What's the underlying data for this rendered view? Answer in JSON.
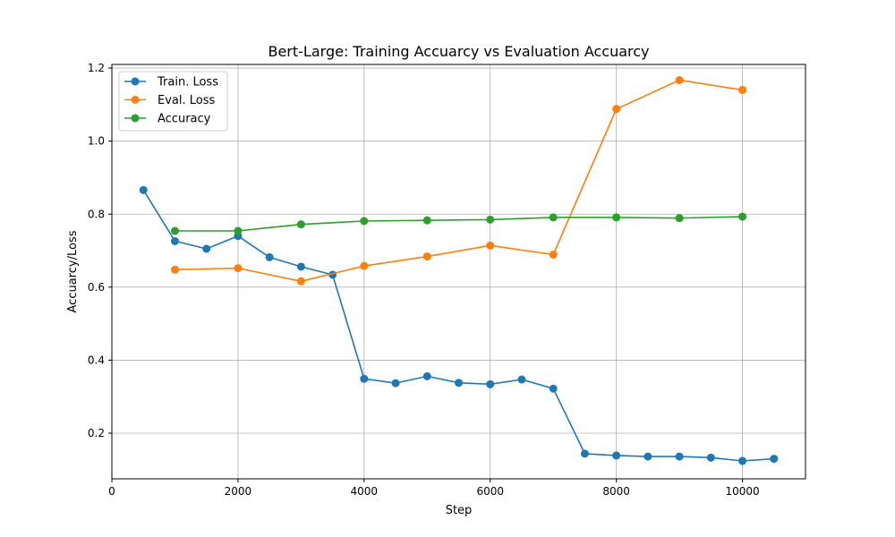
{
  "chart_data": {
    "type": "line",
    "title": "Bert-Large: Training Accuarcy vs Evaluation Accuarcy",
    "xlabel": "Step",
    "ylabel": "Accuarcy/Loss",
    "xlim": [
      0,
      11000
    ],
    "ylim": [
      0.075,
      1.21
    ],
    "x_ticks": [
      0,
      2000,
      4000,
      6000,
      8000,
      10000
    ],
    "y_ticks": [
      0.2,
      0.4,
      0.6,
      0.8,
      1.0,
      1.2
    ],
    "x_tick_labels": [
      "0",
      "2000",
      "4000",
      "6000",
      "8000",
      "10000"
    ],
    "y_tick_labels": [
      "0.2",
      "0.4",
      "0.6",
      "0.8",
      "1.0",
      "1.2"
    ],
    "grid": true,
    "legend": "upper-left",
    "series": [
      {
        "name": "Train. Loss",
        "color": "#1f77b4",
        "x": [
          500,
          1000,
          1500,
          2000,
          2500,
          3000,
          3500,
          4000,
          4500,
          5000,
          5500,
          6000,
          6500,
          7000,
          7500,
          8000,
          8500,
          9000,
          9500,
          10000,
          10500
        ],
        "y": [
          0.866,
          0.726,
          0.705,
          0.74,
          0.682,
          0.656,
          0.634,
          0.349,
          0.337,
          0.356,
          0.338,
          0.334,
          0.347,
          0.322,
          0.144,
          0.139,
          0.136,
          0.136,
          0.133,
          0.124,
          0.13
        ]
      },
      {
        "name": "Eval. Loss",
        "color": "#ff7f0e",
        "x": [
          1000,
          2000,
          3000,
          4000,
          5000,
          6000,
          7000,
          8000,
          9000,
          10000
        ],
        "y": [
          0.648,
          0.652,
          0.616,
          0.658,
          0.684,
          0.714,
          0.689,
          1.088,
          1.167,
          1.14
        ]
      },
      {
        "name": "Accuracy",
        "color": "#2ca02c",
        "x": [
          1000,
          2000,
          3000,
          4000,
          5000,
          6000,
          7000,
          8000,
          9000,
          10000
        ],
        "y": [
          0.754,
          0.754,
          0.772,
          0.781,
          0.783,
          0.785,
          0.791,
          0.791,
          0.789,
          0.793
        ]
      }
    ]
  }
}
